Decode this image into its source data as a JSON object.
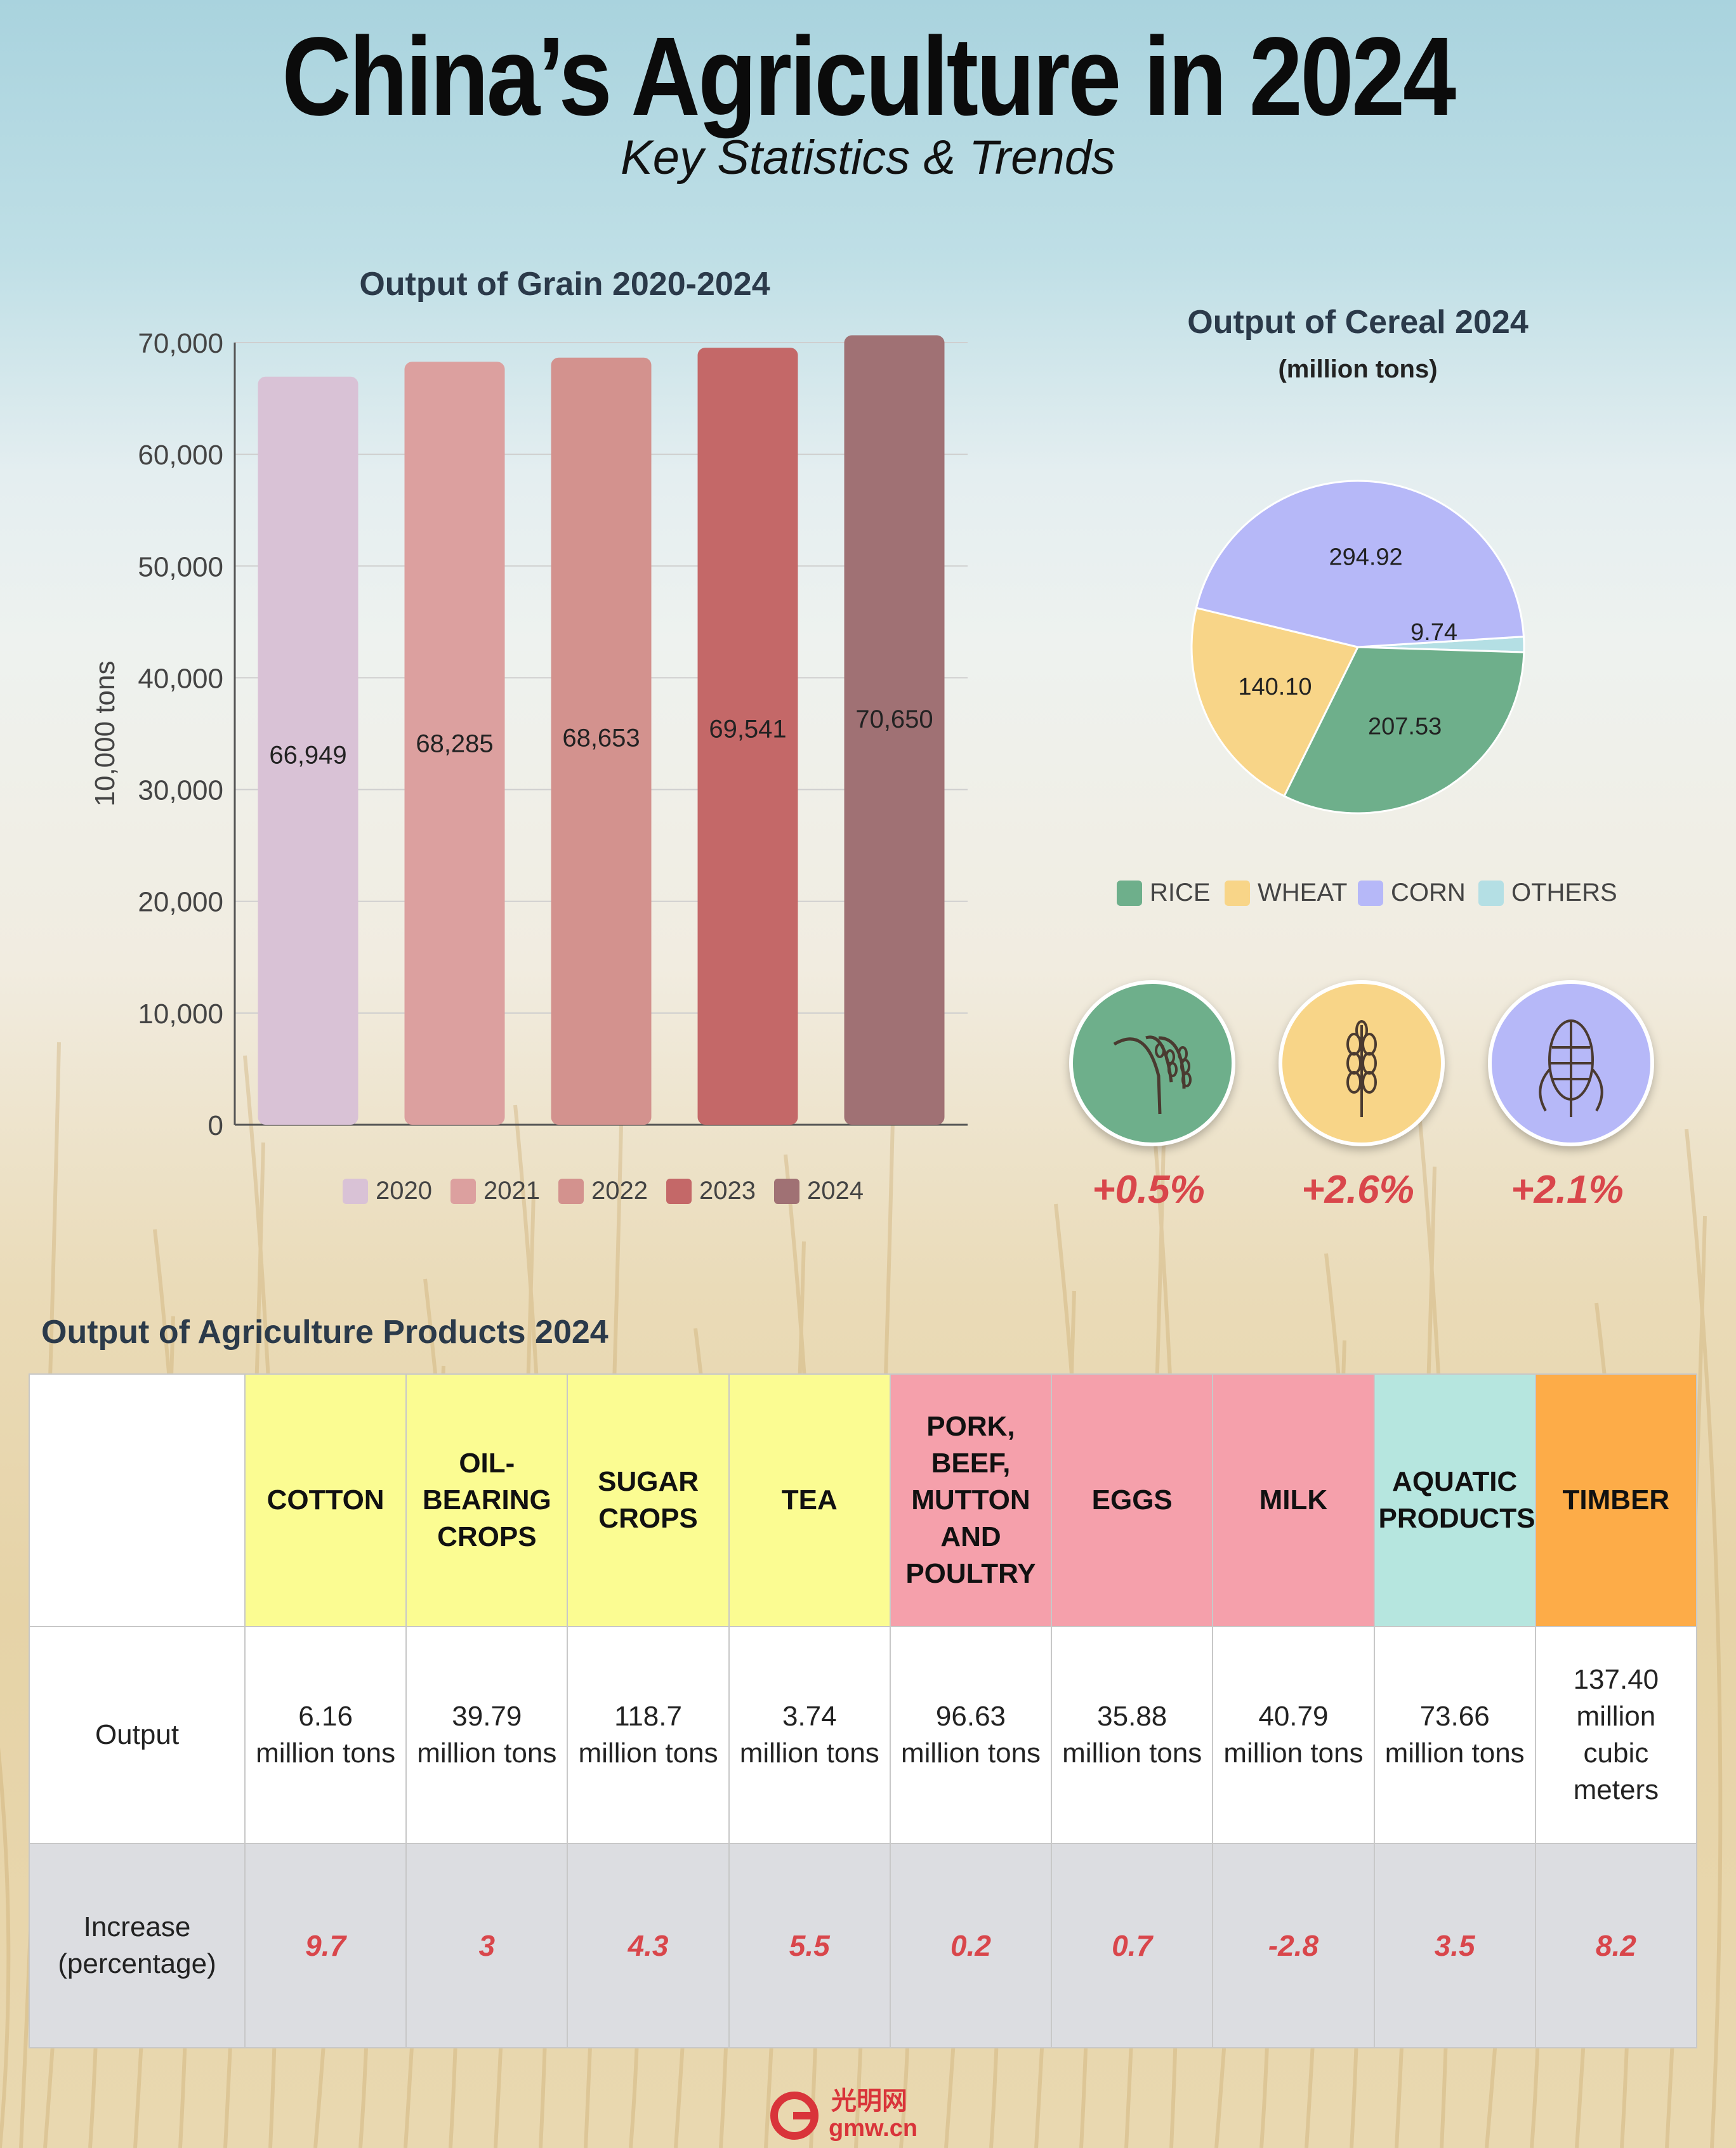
{
  "header": {
    "title": "China’s Agriculture in 2024",
    "subtitle": "Key Statistics & Trends"
  },
  "chart_data": [
    {
      "type": "bar",
      "title": "Output of Grain 2020-2024",
      "ylabel": "10,000 tons",
      "xlabel": "",
      "categories": [
        "2020",
        "2021",
        "2022",
        "2023",
        "2024"
      ],
      "values": [
        66949,
        68285,
        68653,
        69541,
        70650
      ],
      "value_labels": [
        "66,949",
        "68,285",
        "68,653",
        "69,541",
        "70,650"
      ],
      "colors": [
        "#d9c2d6",
        "#dca09f",
        "#d3928e",
        "#c46868",
        "#a07174"
      ],
      "ylim": [
        0,
        70000
      ],
      "yticks": [
        0,
        10000,
        20000,
        30000,
        40000,
        50000,
        60000,
        70000
      ],
      "ytick_labels": [
        "0",
        "10,000",
        "20,000",
        "30,000",
        "40,000",
        "50,000",
        "60,000",
        "70,000"
      ],
      "grid": true,
      "legend_position": "bottom"
    },
    {
      "type": "pie",
      "title": "Output of Cereal 2024",
      "subtitle": "(million tons)",
      "categories": [
        "RICE",
        "WHEAT",
        "CORN",
        "OTHERS"
      ],
      "values": [
        207.53,
        140.1,
        294.92,
        9.74
      ],
      "value_labels": [
        "207.53",
        "140.10",
        "294.92",
        "9.74"
      ],
      "colors": [
        "#6eaf8b",
        "#f8d588",
        "#b6b8f8",
        "#b4dfe4"
      ],
      "legend_position": "bottom"
    }
  ],
  "growth": [
    {
      "crop": "rice",
      "icon": "rice-icon",
      "color": "#6eaf8b",
      "value": "+0.5%"
    },
    {
      "crop": "wheat",
      "icon": "wheat-icon",
      "color": "#f8d588",
      "value": "+2.6%"
    },
    {
      "crop": "corn",
      "icon": "corn-icon",
      "color": "#b6b8f8",
      "value": "+2.1%"
    }
  ],
  "products": {
    "title": "Output of Agriculture Products 2024",
    "row_labels": {
      "output": "Output",
      "increase_line1": "Increase",
      "increase_line2": "(percentage)"
    },
    "items": [
      {
        "name_lines": [
          "COTTON"
        ],
        "color": "#fbfc92",
        "output_lines": [
          "6.16",
          "million tons"
        ],
        "increase": "9.7"
      },
      {
        "name_lines": [
          "OIL-",
          "BEARING",
          "CROPS"
        ],
        "color": "#fbfc92",
        "output_lines": [
          "39.79",
          "million tons"
        ],
        "increase": "3"
      },
      {
        "name_lines": [
          "SUGAR",
          "CROPS"
        ],
        "color": "#fbfc92",
        "output_lines": [
          "118.7",
          "million tons"
        ],
        "increase": "4.3"
      },
      {
        "name_lines": [
          "TEA"
        ],
        "color": "#fbfc92",
        "output_lines": [
          "3.74",
          "million tons"
        ],
        "increase": "5.5"
      },
      {
        "name_lines": [
          "PORK,",
          "BEEF,",
          "MUTTON",
          "AND",
          "POULTRY"
        ],
        "color": "#f5a0ab",
        "output_lines": [
          "96.63",
          "million tons"
        ],
        "increase": "0.2"
      },
      {
        "name_lines": [
          "EGGS"
        ],
        "color": "#f5a0ab",
        "output_lines": [
          "35.88",
          "million tons"
        ],
        "increase": "0.7"
      },
      {
        "name_lines": [
          "MILK"
        ],
        "color": "#f5a0ab",
        "output_lines": [
          "40.79",
          "million tons"
        ],
        "increase": "-2.8"
      },
      {
        "name_lines": [
          "AQUATIC",
          "PRODUCTS"
        ],
        "color": "#b6e6df",
        "output_lines": [
          "73.66",
          "million tons"
        ],
        "increase": "3.5"
      },
      {
        "name_lines": [
          "TIMBER"
        ],
        "color": "#fdac48",
        "output_lines": [
          "137.40",
          "million",
          "cubic meters"
        ],
        "increase": "8.2"
      }
    ]
  },
  "footer": {
    "logo": "光明网",
    "logo_sub": "gmw.cn"
  }
}
